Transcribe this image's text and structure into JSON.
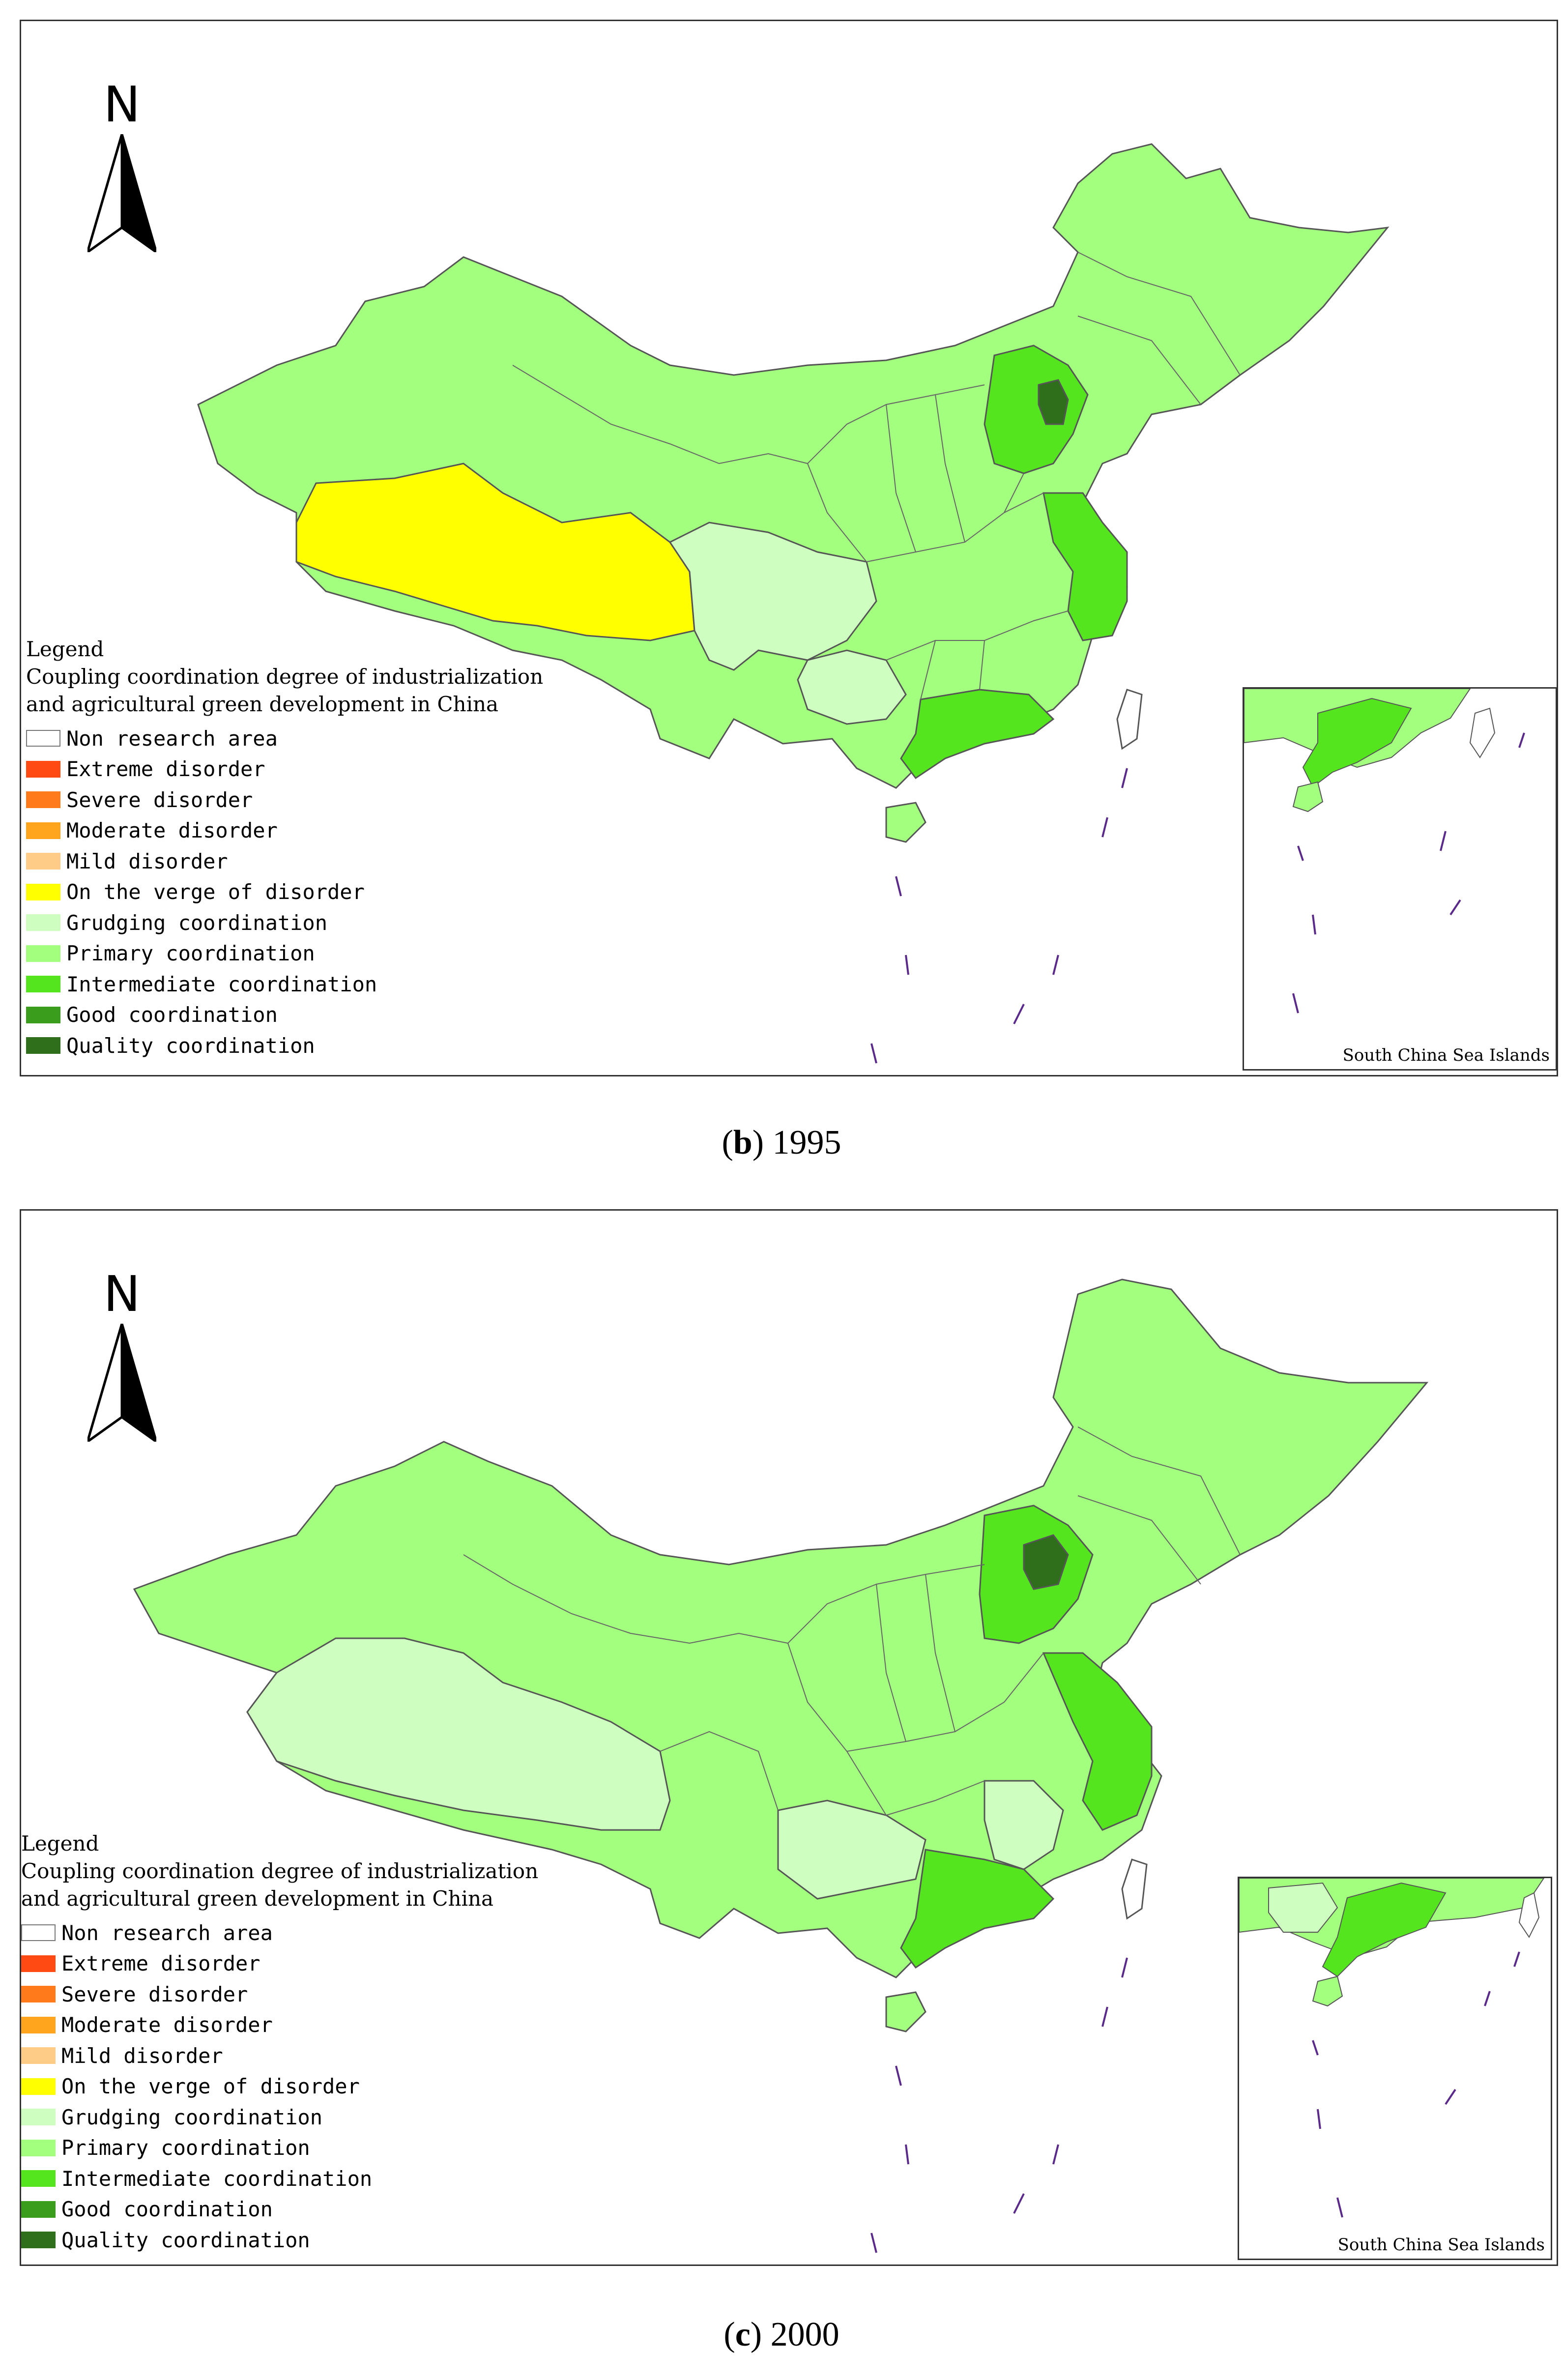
{
  "panels": [
    {
      "caption_letter": "b",
      "caption_year": "1995",
      "legend": {
        "heading": "Legend",
        "title_line1": "Coupling coordination degree of industrialization",
        "title_line2": "and agricultural green development in China"
      },
      "inset_label": "South China Sea Islands",
      "region_classes": {
        "tibet": "On the verge of disorder",
        "sichuan": "Grudging coordination",
        "guizhou": "Grudging coordination",
        "hebei": "Intermediate coordination",
        "beijing-tianjin": "Quality coordination",
        "jiangsu-zhejiang": "Intermediate coordination",
        "guangdong": "Intermediate coordination",
        "other": "Primary coordination"
      }
    },
    {
      "caption_letter": "c",
      "caption_year": "2000",
      "legend": {
        "heading": "Legend",
        "title_line1": "Coupling coordination degree of industrialization",
        "title_line2": "and agricultural green development in China"
      },
      "inset_label": "South China Sea Islands",
      "region_classes": {
        "tibet": "Grudging coordination",
        "guizhou": "Grudging coordination",
        "guangxi": "Grudging coordination",
        "jiangxi": "Grudging coordination",
        "hebei": "Intermediate coordination",
        "beijing-tianjin": "Quality coordination",
        "jiangsu-zhejiang": "Intermediate coordination",
        "guangdong": "Intermediate coordination",
        "other": "Primary coordination"
      }
    }
  ],
  "north_label": "N",
  "legend_items": [
    {
      "label": "Non research area",
      "color": "#ffffff"
    },
    {
      "label": "Extreme disorder",
      "color": "#ff4a14"
    },
    {
      "label": "Severe disorder",
      "color": "#ff7a1a"
    },
    {
      "label": "Moderate disorder",
      "color": "#ffa41c"
    },
    {
      "label": "Mild disorder",
      "color": "#ffcc88"
    },
    {
      "label": "On the verge of disorder",
      "color": "#ffff00"
    },
    {
      "label": "Grudging coordination",
      "color": "#cfffc0"
    },
    {
      "label": "Primary coordination",
      "color": "#a3ff7e"
    },
    {
      "label": "Intermediate coordination",
      "color": "#55e51f"
    },
    {
      "label": "Good coordination",
      "color": "#3a9e1c"
    },
    {
      "label": "Quality coordination",
      "color": "#2f6e1a"
    }
  ]
}
